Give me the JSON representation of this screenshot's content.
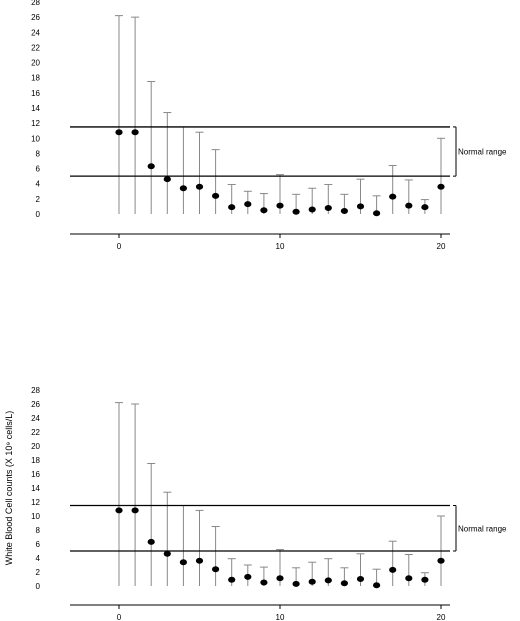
{
  "chart_data": [
    {
      "type": "scatter",
      "title": "",
      "xlabel": "",
      "ylabel": "",
      "xlim": [
        -3,
        20.5
      ],
      "ylim": [
        0,
        28
      ],
      "xticks": [
        "0",
        "10",
        "20"
      ],
      "yticks": [
        "0",
        "2",
        "4",
        "6",
        "8",
        "10",
        "12",
        "14",
        "16",
        "18",
        "20",
        "22",
        "24",
        "26",
        "28"
      ],
      "x": [
        0,
        1,
        2,
        3,
        4,
        5,
        6,
        7,
        8,
        9,
        10,
        11,
        12,
        13,
        14,
        15,
        16,
        17,
        18,
        19,
        20
      ],
      "values": [
        10.8,
        10.8,
        6.3,
        4.6,
        3.4,
        3.6,
        2.4,
        0.9,
        1.3,
        0.5,
        1.1,
        0.3,
        0.6,
        0.8,
        0.4,
        1.0,
        0.1,
        2.3,
        1.1,
        0.9,
        3.6
      ],
      "error_upper": [
        26.2,
        26.0,
        17.5,
        13.4,
        11.5,
        10.8,
        8.5,
        3.9,
        3.0,
        2.7,
        5.2,
        2.6,
        3.4,
        3.9,
        2.6,
        4.6,
        2.4,
        6.4,
        4.5,
        1.9,
        10.0
      ],
      "reference_lines": [
        11.5,
        5.0
      ],
      "range_label": "Normal range",
      "grid": false,
      "legend": "none"
    },
    {
      "type": "scatter",
      "title": "",
      "xlabel": "",
      "ylabel": "White Blood Cell counts (X 10⁹ cells/L)",
      "xlim": [
        -3,
        20.5
      ],
      "ylim": [
        0,
        28
      ],
      "xticks": [
        "0",
        "10",
        "20"
      ],
      "yticks": [
        "0",
        "2",
        "4",
        "6",
        "8",
        "10",
        "12",
        "14",
        "16",
        "18",
        "20",
        "22",
        "24",
        "26",
        "28"
      ],
      "x": [
        0,
        1,
        2,
        3,
        4,
        5,
        6,
        7,
        8,
        9,
        10,
        11,
        12,
        13,
        14,
        15,
        16,
        17,
        18,
        19,
        20
      ],
      "values": [
        10.8,
        10.8,
        6.3,
        4.6,
        3.4,
        3.6,
        2.4,
        0.9,
        1.3,
        0.5,
        1.1,
        0.3,
        0.6,
        0.8,
        0.4,
        1.0,
        0.1,
        2.3,
        1.1,
        0.9,
        3.6
      ],
      "error_upper": [
        26.2,
        26.0,
        17.5,
        13.4,
        11.5,
        10.8,
        8.5,
        3.9,
        3.0,
        2.7,
        5.2,
        2.6,
        3.4,
        3.9,
        2.6,
        4.6,
        2.4,
        6.4,
        4.5,
        1.9,
        10.0
      ],
      "reference_lines": [
        11.5,
        5.0
      ],
      "range_label": "Normal range",
      "grid": false,
      "legend": "none"
    }
  ]
}
